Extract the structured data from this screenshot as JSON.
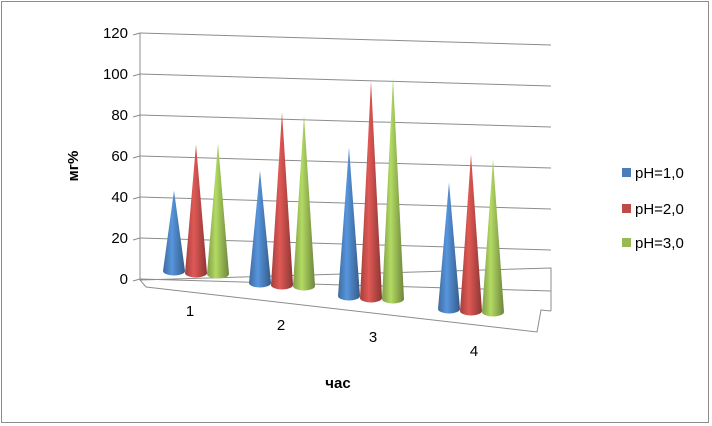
{
  "chart_data": {
    "type": "bar",
    "style": "3d-cone",
    "categories": [
      "1",
      "2",
      "3",
      "4"
    ],
    "series": [
      {
        "name": "pH=1,0",
        "values": [
          40,
          56,
          74,
          63
        ],
        "color": "#4a7ebb"
      },
      {
        "name": "pH=2,0",
        "values": [
          64,
          86,
          108,
          78
        ],
        "color": "#be4b48"
      },
      {
        "name": "pH=3,0",
        "values": [
          65,
          85,
          110,
          76
        ],
        "color": "#98b954"
      }
    ],
    "yticks": [
      "0",
      "20",
      "40",
      "60",
      "80",
      "100",
      "120"
    ],
    "ylim": [
      0,
      120
    ],
    "xlabel": "час",
    "ylabel": "мг%",
    "grid": true,
    "legend": "right"
  }
}
